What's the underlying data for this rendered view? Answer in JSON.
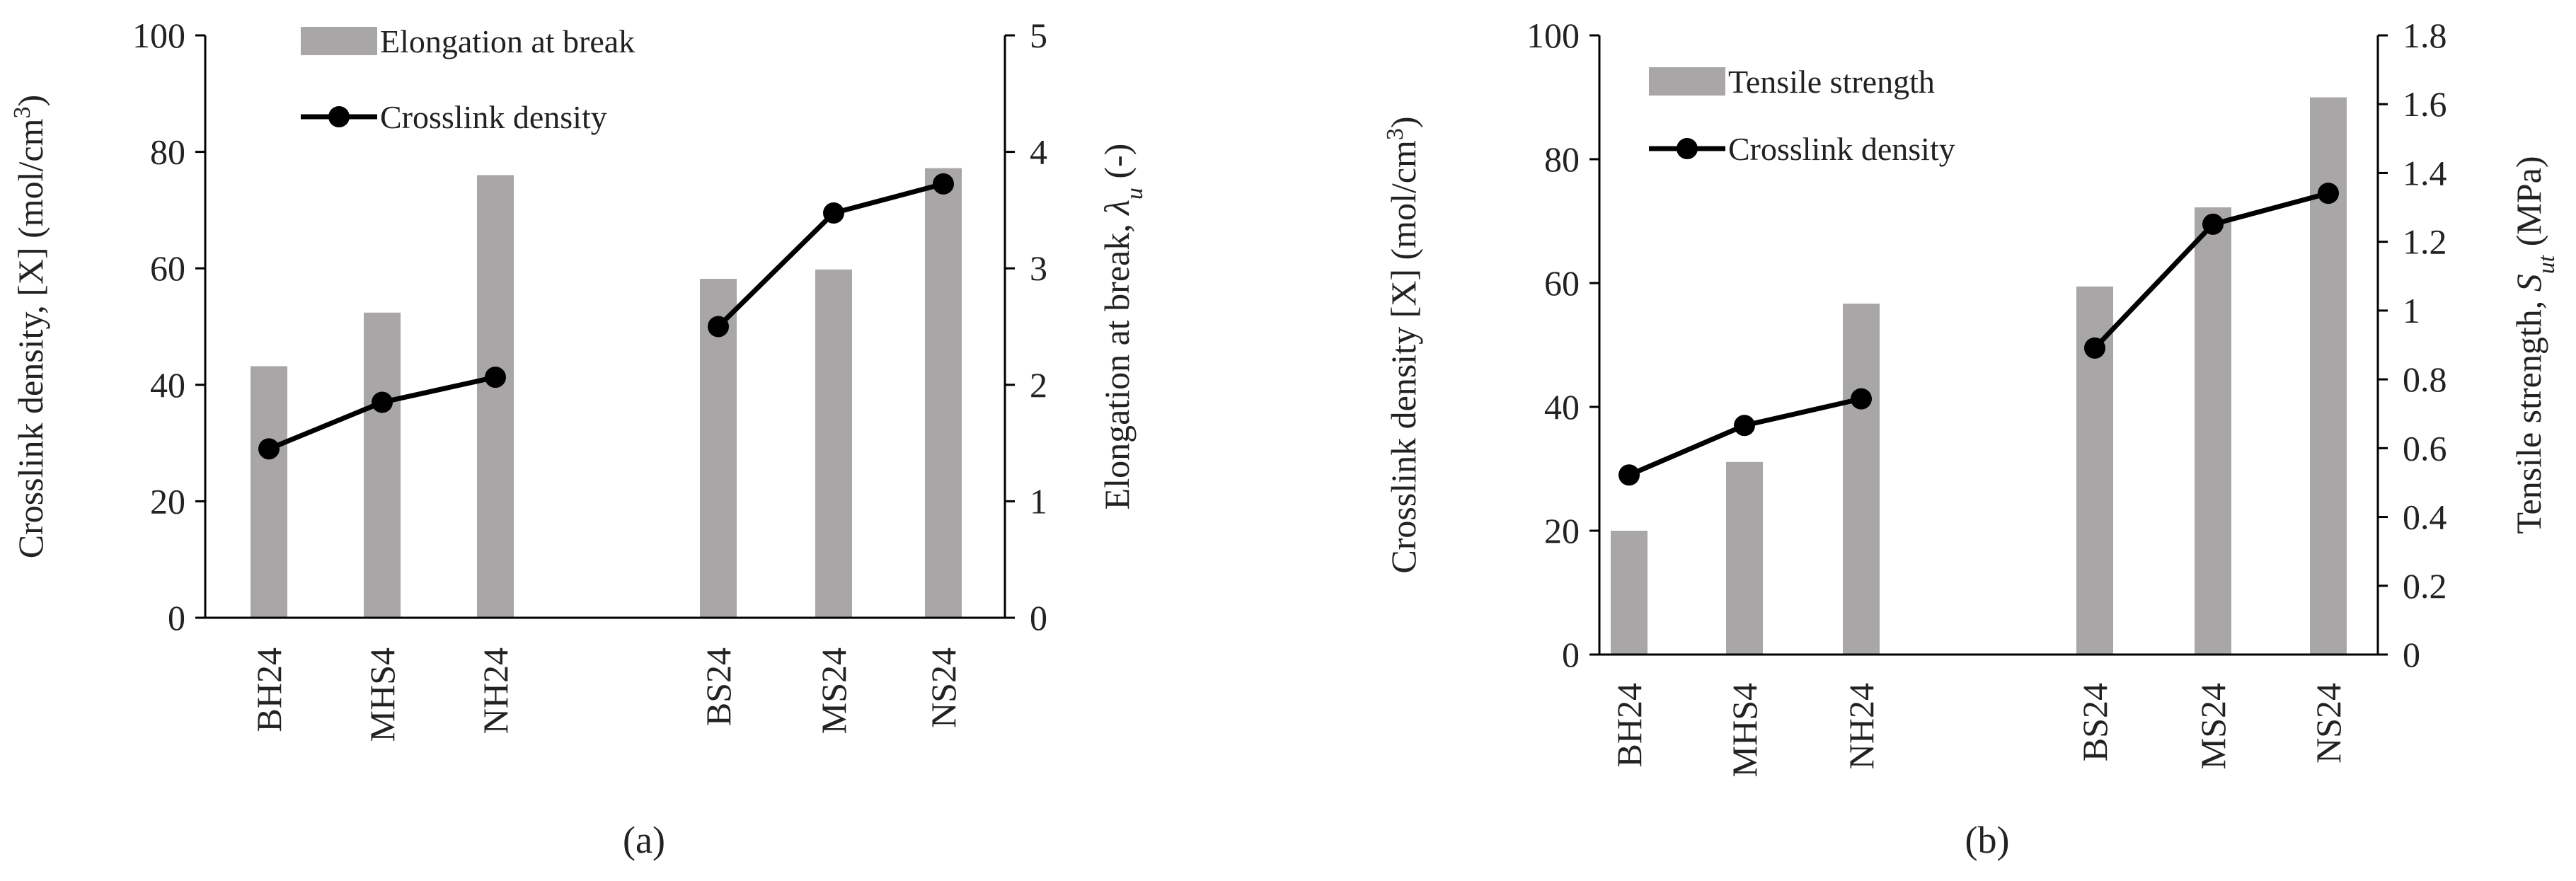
{
  "colors": {
    "bar": "#a8a6a6",
    "line": "#000000",
    "axis": "#000000"
  },
  "chart_data": [
    {
      "type": "bar+line",
      "panel_label": "(a)",
      "categories": [
        "BH24",
        "MHS4",
        "NH24",
        "BS24",
        "MS24",
        "NS24"
      ],
      "bar_series": {
        "name": "Elongation at break",
        "axis": "right",
        "values": [
          2.16,
          2.62,
          3.8,
          2.91,
          2.99,
          3.86
        ]
      },
      "line_series": {
        "name": "Crosslink  density",
        "axis": "left",
        "values": [
          29,
          37,
          41.3,
          50,
          69.5,
          74.5
        ]
      },
      "left_axis": {
        "label_main": "Crosslink density, [X] (mol/cm",
        "label_sup": "3",
        "label_end": ")",
        "ylim": [
          0,
          100
        ],
        "ticks": [
          "0",
          "20",
          "40",
          "60",
          "80",
          "100"
        ]
      },
      "right_axis": {
        "label_main": "Elongation at break, ",
        "label_symbol": "λ",
        "label_sub": "u",
        "label_end": " (-)",
        "ylim": [
          0,
          5
        ],
        "ticks": [
          "0",
          "1",
          "2",
          "3",
          "4",
          "5"
        ]
      },
      "legend": {
        "position": "top-left"
      }
    },
    {
      "type": "bar+line",
      "panel_label": "(b)",
      "categories": [
        "BH24",
        "MHS4",
        "NH24",
        "BS24",
        "MS24",
        "NS24"
      ],
      "bar_series": {
        "name": "Tensile strength",
        "axis": "right",
        "values": [
          0.36,
          0.56,
          1.02,
          1.07,
          1.3,
          1.62
        ]
      },
      "line_series": {
        "name": "Crosslink  density",
        "axis": "left",
        "values": [
          29,
          37,
          41.3,
          49.5,
          69.5,
          74.5
        ]
      },
      "left_axis": {
        "label_main": "Crosslink density [X] (mol/cm",
        "label_sup": "3",
        "label_end": ")",
        "ylim": [
          0,
          100
        ],
        "ticks": [
          "0",
          "20",
          "40",
          "60",
          "80",
          "100"
        ]
      },
      "right_axis": {
        "label_main": "Tensile strength, ",
        "label_symbol": "S",
        "label_sub": "ut",
        "label_end": " (MPa)",
        "ylim": [
          0,
          1.8
        ],
        "ticks": [
          "0",
          "0.2",
          "0.4",
          "0.6",
          "0.8",
          "1",
          "1.2",
          "1.4",
          "1.6",
          "1.8"
        ]
      },
      "legend": {
        "position": "top-left"
      }
    }
  ]
}
